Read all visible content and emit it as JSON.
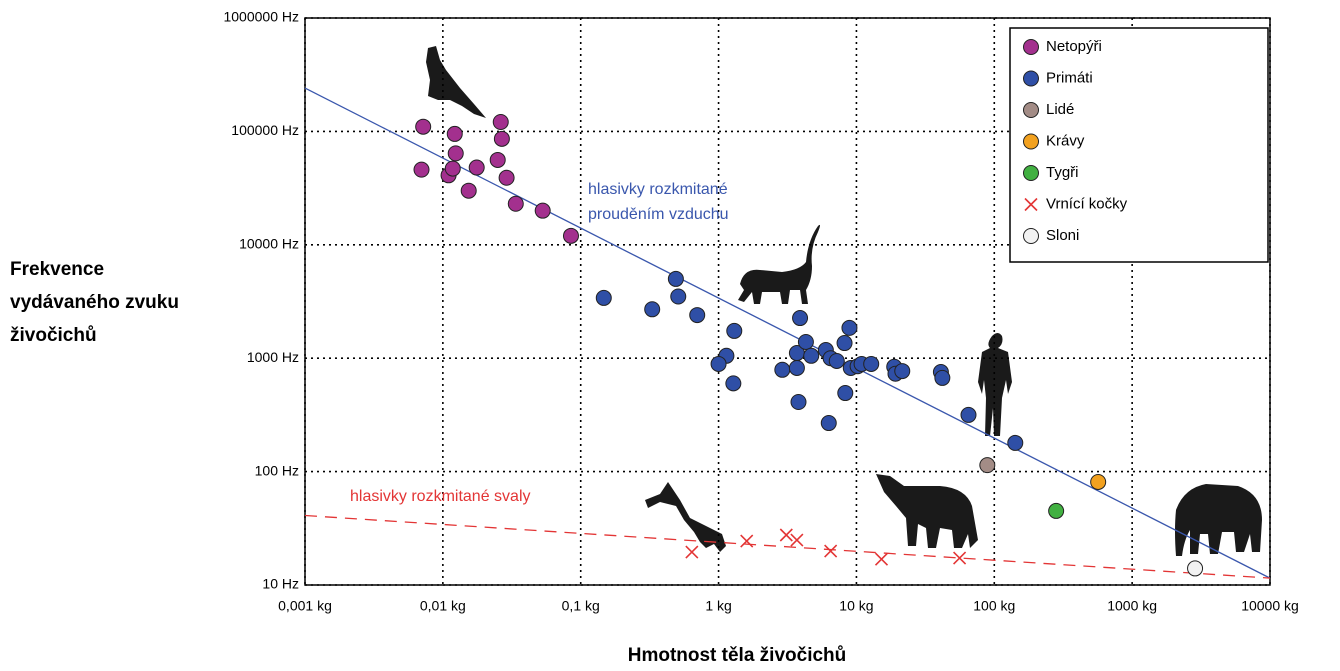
{
  "chart_data": {
    "type": "scatter",
    "xscale": "log",
    "yscale": "log",
    "grid": true,
    "legend": "upper right",
    "xlabel": "Hmotnost těla živočichů",
    "ylabel": [
      "Frekvence",
      "vydávaného zvuku",
      "živočichů"
    ],
    "xlim": [
      0.001,
      10000
    ],
    "ylim": [
      10,
      1000000
    ],
    "xticks": [
      {
        "value": 0.001,
        "label": "0,001 kg"
      },
      {
        "value": 0.01,
        "label": "0,01 kg"
      },
      {
        "value": 0.1,
        "label": "0,1 kg"
      },
      {
        "value": 1,
        "label": "1 kg"
      },
      {
        "value": 10,
        "label": "10 kg"
      },
      {
        "value": 100,
        "label": "100 kg"
      },
      {
        "value": 1000,
        "label": "1000 kg"
      },
      {
        "value": 10000,
        "label": "10000 kg"
      }
    ],
    "yticks": [
      {
        "value": 10,
        "label": "10 Hz"
      },
      {
        "value": 100,
        "label": "100 Hz"
      },
      {
        "value": 1000,
        "label": "1000 Hz"
      },
      {
        "value": 10000,
        "label": "10000 Hz"
      },
      {
        "value": 100000,
        "label": "100000 Hz"
      },
      {
        "value": 1000000,
        "label": "1000000 Hz"
      }
    ],
    "series": [
      {
        "name": "Netopýři",
        "color": "#a3308e",
        "marker": "circle",
        "x": [
          0.0072,
          0.007,
          0.011,
          0.0118,
          0.0122,
          0.0124,
          0.0154,
          0.0176,
          0.025,
          0.0263,
          0.0268,
          0.029,
          0.0338,
          0.053,
          0.085
        ],
        "values": [
          110000,
          46000,
          41000,
          47000,
          95000,
          64000,
          30000,
          48000,
          56000,
          121000,
          86000,
          39000,
          23000,
          20000,
          12000
        ]
      },
      {
        "name": "Primáti",
        "color": "#2f4fa6",
        "marker": "circle",
        "x": [
          0.147,
          0.33,
          0.49,
          0.51,
          0.7,
          1.3,
          1.14,
          1.0,
          1.28,
          2.9,
          3.7,
          3.7,
          3.9,
          4.3,
          4.7,
          6.0,
          6.5,
          7.2,
          8.2,
          8.9,
          9.1,
          10.2,
          10.9,
          12.8,
          18.8,
          19.2,
          21.5,
          41,
          42,
          65,
          142,
          3.8,
          6.3,
          8.3
        ],
        "values": [
          3400,
          2700,
          5000,
          3500,
          2400,
          1740,
          1050,
          890,
          600,
          790,
          820,
          1110,
          2260,
          1390,
          1050,
          1180,
          1000,
          945,
          1360,
          1850,
          820,
          850,
          890,
          890,
          840,
          730,
          770,
          755,
          670,
          316,
          179,
          411,
          268,
          493
        ]
      },
      {
        "name": "Lidé",
        "color": "#a38c86",
        "marker": "circle",
        "x": [
          89
        ],
        "values": [
          114
        ]
      },
      {
        "name": "Krávy",
        "color": "#f2a11f",
        "marker": "circle",
        "x": [
          567
        ],
        "values": [
          81
        ]
      },
      {
        "name": "Tygři",
        "color": "#41b041",
        "marker": "circle",
        "x": [
          281
        ],
        "values": [
          45
        ]
      },
      {
        "name": "Vrnící kočky",
        "color": "#e33535",
        "marker": "x",
        "x": [
          0.64,
          1.6,
          3.1,
          3.7,
          6.5,
          15.2,
          56
        ],
        "values": [
          19.5,
          24.4,
          27.6,
          24.9,
          19.9,
          16.9,
          17.3
        ]
      },
      {
        "name": "Sloni",
        "color": "#f2f2f2",
        "marker": "circle",
        "x": [
          2860
        ],
        "values": [
          14
        ]
      }
    ],
    "trend_lines": [
      {
        "label": [
          "hlasivky rozkmitané",
          "prouděním vzduchu"
        ],
        "color": "#3a57ad",
        "dashed": false,
        "x": [
          0.001,
          10000
        ],
        "values": [
          241000,
          11.5
        ]
      },
      {
        "label": [
          "hlasivky rozkmitané svaly"
        ],
        "color": "#e33535",
        "dashed": true,
        "x": [
          0.001,
          10000
        ],
        "values": [
          41,
          11.5
        ]
      }
    ]
  }
}
